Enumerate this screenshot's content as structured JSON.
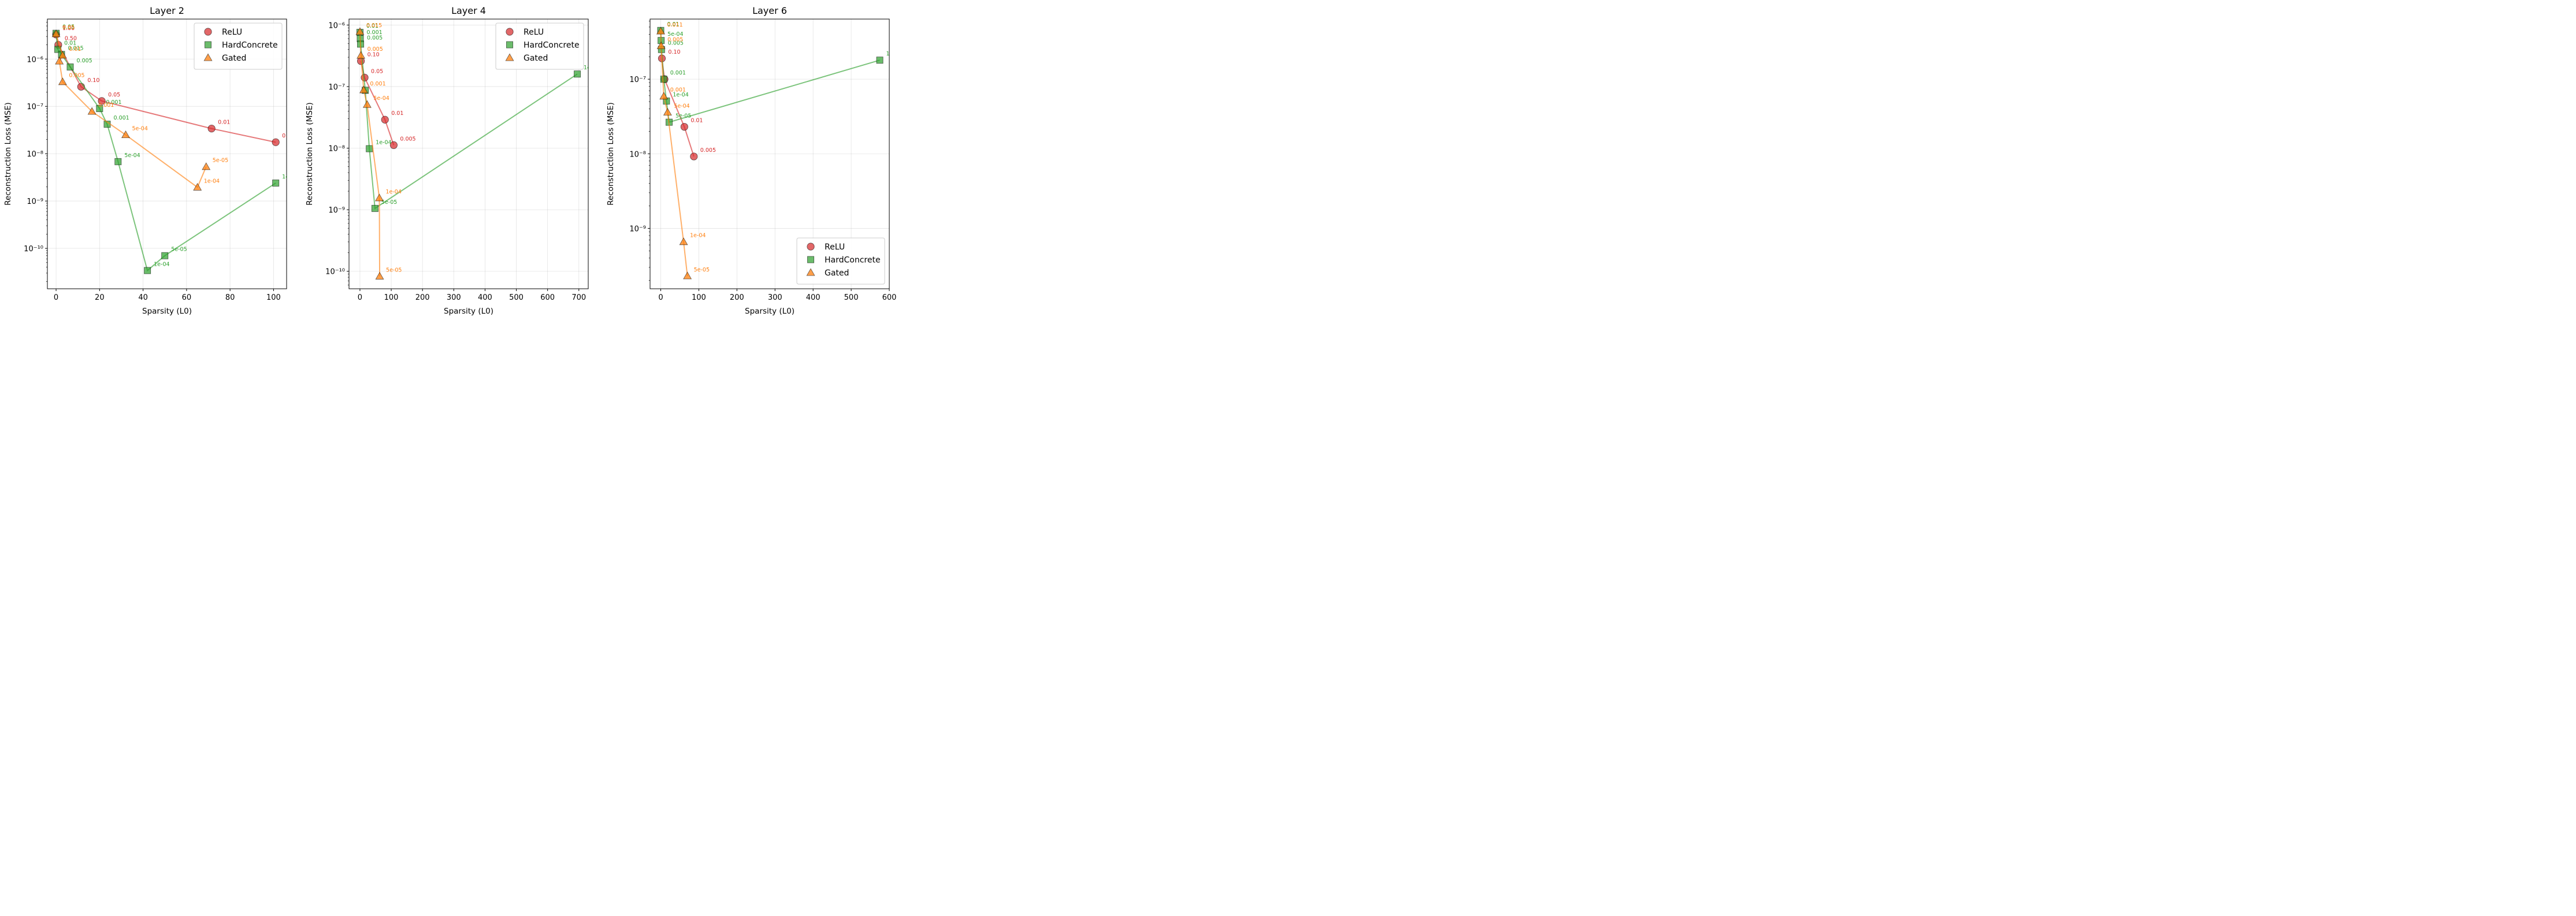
{
  "series_styles": {
    "ReLU": {
      "color": "#d62728",
      "marker": "circle"
    },
    "HardConcrete": {
      "color": "#2ca02c",
      "marker": "square"
    },
    "Gated": {
      "color": "#ff7f0e",
      "marker": "triangle"
    }
  },
  "chart_data": [
    {
      "type": "line",
      "title": "Layer 2",
      "xlabel": "Sparsity (L0)",
      "ylabel": "Reconstruction Loss (MSE)",
      "yscale": "log",
      "xlim": [
        -4,
        106
      ],
      "ylim": [
        1.4e-11,
        7e-06
      ],
      "xticks": [
        0,
        20,
        40,
        60,
        80,
        100
      ],
      "yticks": [
        1e-10,
        1e-09,
        1e-08,
        1e-07,
        1e-06
      ],
      "ytick_labels": [
        "10⁻¹⁰",
        "10⁻⁹",
        "10⁻⁸",
        "10⁻⁷",
        "10⁻⁶"
      ],
      "grid": true,
      "legend": "upper right",
      "series": [
        {
          "name": "ReLU",
          "points": [
            {
              "x": 0,
              "y": 3.3e-06,
              "label": "1.00"
            },
            {
              "x": 1,
              "y": 2e-06,
              "label": "0.50"
            },
            {
              "x": 11.5,
              "y": 2.6e-07,
              "label": "0.10"
            },
            {
              "x": 21,
              "y": 1.3e-07,
              "label": "0.05"
            },
            {
              "x": 71.5,
              "y": 3.4e-08,
              "label": "0.01"
            },
            {
              "x": 101,
              "y": 1.75e-08,
              "label": "0.005"
            }
          ]
        },
        {
          "name": "HardConcrete",
          "points": [
            {
              "x": 0,
              "y": 3.5e-06,
              "label": "0.05"
            },
            {
              "x": 0.8,
              "y": 1.6e-06,
              "label": "0.01"
            },
            {
              "x": 2.5,
              "y": 1.25e-06,
              "label": "0.015"
            },
            {
              "x": 6.5,
              "y": 6.8e-07,
              "label": "0.005"
            },
            {
              "x": 20,
              "y": 9e-08,
              "label": "0.001"
            },
            {
              "x": 23.5,
              "y": 4.2e-08,
              "label": "0.001"
            },
            {
              "x": 28.5,
              "y": 6.8e-09,
              "label": "5e-04"
            },
            {
              "x": 42,
              "y": 3.4e-11,
              "label": "1e-04"
            },
            {
              "x": 50,
              "y": 7e-11,
              "label": "5e-05"
            },
            {
              "x": 101,
              "y": 2.4e-09,
              "label": "1e-05"
            }
          ]
        },
        {
          "name": "Gated",
          "points": [
            {
              "x": 0,
              "y": 3.4e-06,
              "label": "0.05"
            },
            {
              "x": 3,
              "y": 1.2e-06,
              "label": "0.01"
            },
            {
              "x": 1.5,
              "y": 9e-07,
              "label": ""
            },
            {
              "x": 3,
              "y": 3.3e-07,
              "label": "0.005"
            },
            {
              "x": 16.5,
              "y": 7.8e-08,
              "label": "0.001"
            },
            {
              "x": 32,
              "y": 2.5e-08,
              "label": "5e-04"
            },
            {
              "x": 65,
              "y": 1.95e-09,
              "label": "1e-04"
            },
            {
              "x": 69,
              "y": 5.3e-09,
              "label": "5e-05"
            }
          ]
        }
      ]
    },
    {
      "type": "line",
      "title": "Layer 4",
      "xlabel": "Sparsity (L0)",
      "ylabel": "Reconstruction Loss (MSE)",
      "yscale": "log",
      "xlim": [
        -35,
        730
      ],
      "ylim": [
        5.2e-11,
        1.25e-06
      ],
      "xticks": [
        0,
        100,
        200,
        300,
        400,
        500,
        600,
        700
      ],
      "yticks": [
        1e-10,
        1e-09,
        1e-08,
        1e-07,
        1e-06
      ],
      "ytick_labels": [
        "10⁻¹⁰",
        "10⁻⁹",
        "10⁻⁸",
        "10⁻⁷",
        "10⁻⁶"
      ],
      "grid": true,
      "legend": "upper right",
      "series": [
        {
          "name": "ReLU",
          "points": [
            {
              "x": 3,
              "y": 2.6e-07,
              "label": "0.10"
            },
            {
              "x": 15,
              "y": 1.4e-07,
              "label": "0.05"
            },
            {
              "x": 80,
              "y": 2.9e-08,
              "label": "0.01"
            },
            {
              "x": 108,
              "y": 1.12e-08,
              "label": "0.005"
            }
          ]
        },
        {
          "name": "HardConcrete",
          "points": [
            {
              "x": 0,
              "y": 7.6e-07,
              "label": "0.01"
            },
            {
              "x": 1,
              "y": 6e-07,
              "label": "0.001"
            },
            {
              "x": 2,
              "y": 4.9e-07,
              "label": "0.005"
            },
            {
              "x": 17,
              "y": 8.7e-08,
              "label": ""
            },
            {
              "x": 30,
              "y": 9.8e-09,
              "label": "1e-04"
            },
            {
              "x": 48,
              "y": 1.05e-09,
              "label": "5e-05"
            },
            {
              "x": 695,
              "y": 1.6e-07,
              "label": "1e-05"
            }
          ]
        },
        {
          "name": "Gated",
          "points": [
            {
              "x": 0,
              "y": 7.8e-07,
              "label": "0.015"
            },
            {
              "x": 3,
              "y": 3.2e-07,
              "label": "0.005"
            },
            {
              "x": 12,
              "y": 8.8e-08,
              "label": "0.001"
            },
            {
              "x": 23,
              "y": 5.1e-08,
              "label": "5e-04"
            },
            {
              "x": 62,
              "y": 1.55e-09,
              "label": "1e-04"
            },
            {
              "x": 63,
              "y": 8.3e-11,
              "label": "5e-05"
            }
          ]
        }
      ]
    },
    {
      "type": "line",
      "title": "Layer 6",
      "xlabel": "Sparsity (L0)",
      "ylabel": "Reconstruction Loss (MSE)",
      "yscale": "log",
      "xlim": [
        -28,
        600
      ],
      "ylim": [
        1.55e-10,
        6.4e-07
      ],
      "xticks": [
        0,
        100,
        200,
        300,
        400,
        500,
        600
      ],
      "yticks": [
        1e-09,
        1e-08,
        1e-07
      ],
      "ytick_labels": [
        "10⁻⁹",
        "10⁻⁸",
        "10⁻⁷"
      ],
      "grid": true,
      "legend": "lower right",
      "series": [
        {
          "name": "ReLU",
          "points": [
            {
              "x": 3,
              "y": 1.9e-07,
              "label": "0.10"
            },
            {
              "x": 10,
              "y": 1e-07,
              "label": ""
            },
            {
              "x": 62,
              "y": 2.3e-08,
              "label": "0.01"
            },
            {
              "x": 87,
              "y": 9.2e-09,
              "label": "0.005"
            }
          ]
        },
        {
          "name": "HardConcrete",
          "points": [
            {
              "x": 0,
              "y": 4.5e-07,
              "label": "0.01"
            },
            {
              "x": 1,
              "y": 3.3e-07,
              "label": "5e-04"
            },
            {
              "x": 2,
              "y": 2.5e-07,
              "label": "0.005"
            },
            {
              "x": 8,
              "y": 1e-07,
              "label": "0.001"
            },
            {
              "x": 15,
              "y": 5.1e-08,
              "label": "1e-04"
            },
            {
              "x": 22,
              "y": 2.65e-08,
              "label": "5e-05"
            },
            {
              "x": 575,
              "y": 1.8e-07,
              "label": "1e-05"
            }
          ]
        },
        {
          "name": "Gated",
          "points": [
            {
              "x": 0,
              "y": 4.4e-07,
              "label": "0.011"
            },
            {
              "x": 1,
              "y": 2.8e-07,
              "label": "0.005"
            },
            {
              "x": 8,
              "y": 5.9e-08,
              "label": "0.001"
            },
            {
              "x": 18,
              "y": 3.6e-08,
              "label": "5e-04"
            },
            {
              "x": 60,
              "y": 6.6e-10,
              "label": "1e-04"
            },
            {
              "x": 70,
              "y": 2.3e-10,
              "label": "5e-05"
            }
          ]
        }
      ]
    }
  ]
}
